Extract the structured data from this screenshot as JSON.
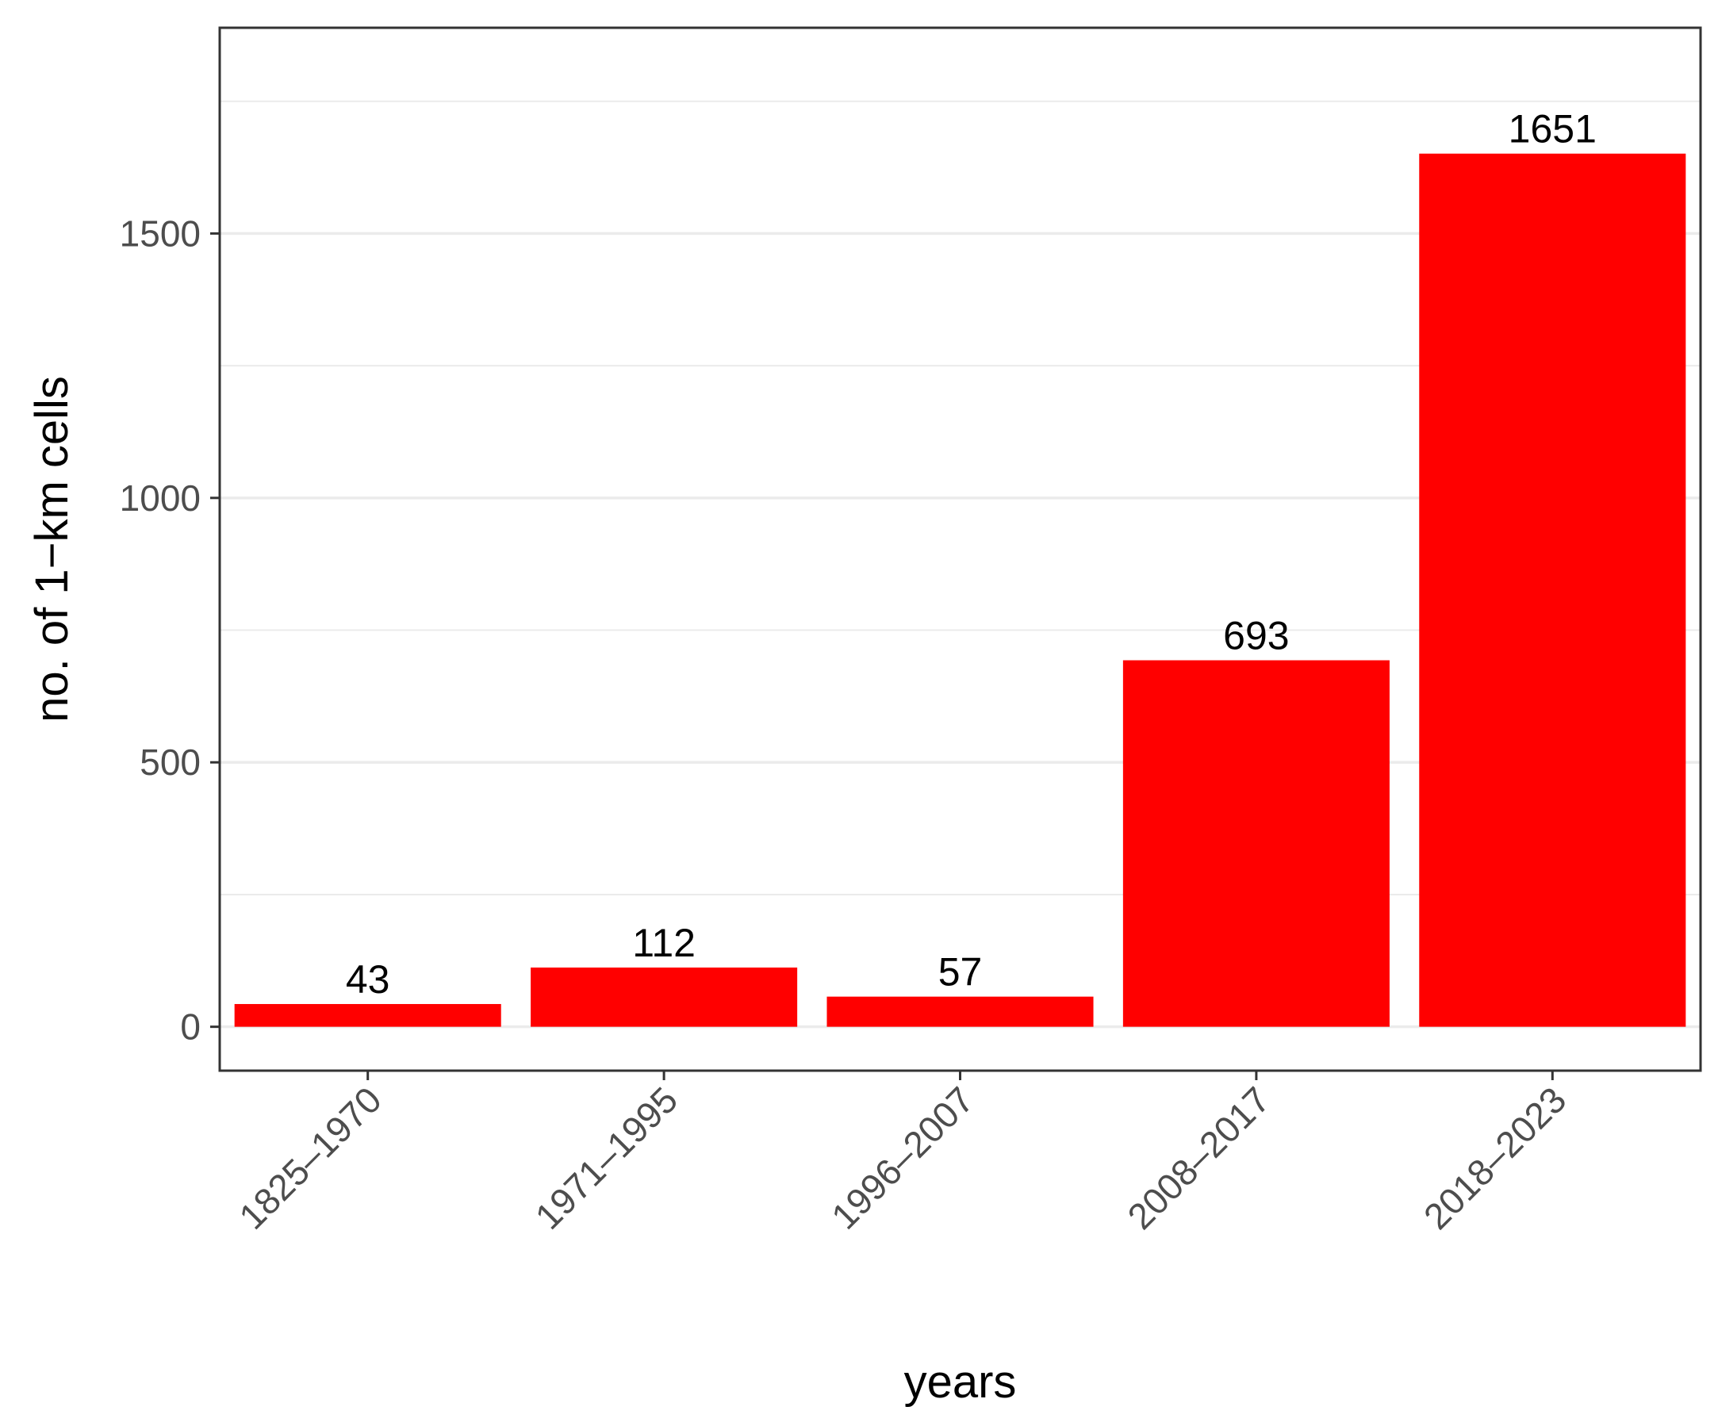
{
  "chart_data": {
    "type": "bar",
    "categories": [
      "1825–1970",
      "1971–1995",
      "1996–2007",
      "2008–2017",
      "2018–2023"
    ],
    "values": [
      43,
      112,
      57,
      693,
      1651
    ],
    "data_labels": [
      "43",
      "112",
      "57",
      "693",
      "1651"
    ],
    "title": "",
    "xlabel": "years",
    "ylabel": "no. of 1−km cells",
    "ylim": [
      -83,
      1889
    ],
    "yticks": [
      0,
      500,
      1000,
      1500
    ],
    "ytick_labels": [
      "0",
      "500",
      "1000",
      "1500"
    ],
    "grid": true,
    "legend": "none",
    "bar_color": "#ff0000"
  }
}
